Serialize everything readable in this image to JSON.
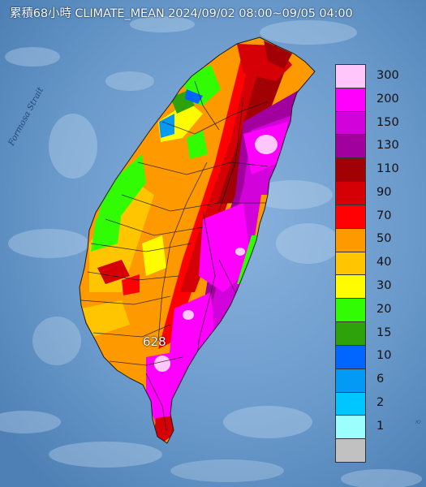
{
  "title": "累積68小時 CLIMATE_MEAN 2024/09/02 08:00~09/05 04:00",
  "strait_label": "Formosa Strait",
  "max_rainfall_label": "628",
  "corner_label": "ю",
  "legend": {
    "entries": [
      {
        "label": "300",
        "color": "#ffc6fc"
      },
      {
        "label": "200",
        "color": "#ff00fc"
      },
      {
        "label": "150",
        "color": "#d102da"
      },
      {
        "label": "130",
        "color": "#a1009f"
      },
      {
        "label": "110",
        "color": "#a10004"
      },
      {
        "label": "90",
        "color": "#d50006"
      },
      {
        "label": "70",
        "color": "#ff0102"
      },
      {
        "label": "50",
        "color": "#ff9900"
      },
      {
        "label": "40",
        "color": "#ffc600"
      },
      {
        "label": "30",
        "color": "#fffc00"
      },
      {
        "label": "20",
        "color": "#32fc04"
      },
      {
        "label": "15",
        "color": "#2da20b"
      },
      {
        "label": "10",
        "color": "#0066ff"
      },
      {
        "label": "6",
        "color": "#039af5"
      },
      {
        "label": "2",
        "color": "#00c6ff"
      },
      {
        "label": "1",
        "color": "#9dfefe"
      },
      {
        "label": "",
        "color": "#c1c1c1"
      }
    ]
  },
  "colors": {
    "sea": "#5c8fc2",
    "sea_light": "#7ea9d8",
    "boundary": "#1a1a1a"
  }
}
